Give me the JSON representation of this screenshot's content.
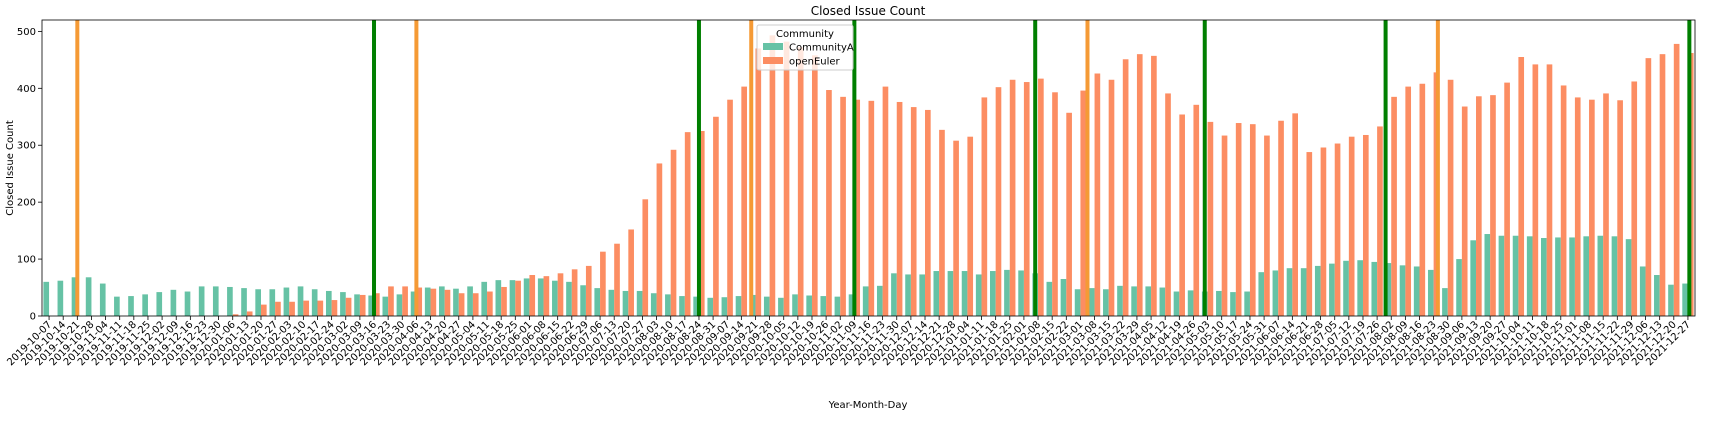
{
  "chart_data": {
    "type": "bar",
    "title": "Closed Issue Count",
    "xlabel": "Year-Month-Day",
    "ylabel": "Closed Issue Count",
    "legend_title": "Community",
    "legend_position": "upper center",
    "categories": [
      "2019-10-07",
      "2019-10-14",
      "2019-10-21",
      "2019-10-28",
      "2019-11-04",
      "2019-11-11",
      "2019-11-18",
      "2019-11-25",
      "2019-12-02",
      "2019-12-09",
      "2019-12-16",
      "2019-12-23",
      "2019-12-30",
      "2020-01-06",
      "2020-01-13",
      "2020-01-20",
      "2020-01-27",
      "2020-02-03",
      "2020-02-10",
      "2020-02-17",
      "2020-02-24",
      "2020-03-02",
      "2020-03-09",
      "2020-03-16",
      "2020-03-23",
      "2020-03-30",
      "2020-04-06",
      "2020-04-13",
      "2020-04-20",
      "2020-04-27",
      "2020-05-04",
      "2020-05-11",
      "2020-05-18",
      "2020-05-25",
      "2020-06-01",
      "2020-06-08",
      "2020-06-15",
      "2020-06-22",
      "2020-06-29",
      "2020-07-06",
      "2020-07-13",
      "2020-07-20",
      "2020-07-27",
      "2020-08-03",
      "2020-08-10",
      "2020-08-17",
      "2020-08-24",
      "2020-08-31",
      "2020-09-07",
      "2020-09-14",
      "2020-09-21",
      "2020-09-28",
      "2020-10-05",
      "2020-10-12",
      "2020-10-19",
      "2020-10-26",
      "2020-11-02",
      "2020-11-09",
      "2020-11-16",
      "2020-11-23",
      "2020-11-30",
      "2020-12-07",
      "2020-12-14",
      "2020-12-21",
      "2020-12-28",
      "2021-01-04",
      "2021-01-11",
      "2021-01-18",
      "2021-01-25",
      "2021-02-01",
      "2021-02-08",
      "2021-02-15",
      "2021-02-22",
      "2021-03-01",
      "2021-03-08",
      "2021-03-15",
      "2021-03-22",
      "2021-03-29",
      "2021-04-05",
      "2021-04-12",
      "2021-04-19",
      "2021-04-26",
      "2021-05-03",
      "2021-05-10",
      "2021-05-17",
      "2021-05-24",
      "2021-05-31",
      "2021-06-07",
      "2021-06-14",
      "2021-06-21",
      "2021-06-28",
      "2021-07-05",
      "2021-07-12",
      "2021-07-19",
      "2021-07-26",
      "2021-08-02",
      "2021-08-09",
      "2021-08-16",
      "2021-08-23",
      "2021-08-30",
      "2021-09-06",
      "2021-09-13",
      "2021-09-20",
      "2021-09-27",
      "2021-10-04",
      "2021-10-11",
      "2021-10-18",
      "2021-10-25",
      "2021-11-01",
      "2021-11-08",
      "2021-11-15",
      "2021-11-22",
      "2021-11-29",
      "2021-12-06",
      "2021-12-13",
      "2021-12-20",
      "2021-12-27"
    ],
    "series": [
      {
        "name": "CommunityA",
        "color": "#66c2a5",
        "values": [
          60,
          62,
          68,
          68,
          57,
          34,
          35,
          38,
          42,
          46,
          43,
          52,
          52,
          51,
          49,
          47,
          47,
          50,
          52,
          47,
          44,
          42,
          38,
          36,
          34,
          38,
          43,
          50,
          52,
          48,
          52,
          60,
          63,
          63,
          66,
          66,
          62,
          60,
          54,
          49,
          46,
          44,
          44,
          40,
          38,
          35,
          34,
          32,
          33,
          35,
          37,
          34,
          32,
          38,
          36,
          35,
          34,
          38,
          52,
          53,
          75,
          73,
          73,
          79,
          79,
          79,
          73,
          79,
          81,
          80,
          75,
          60,
          65,
          47,
          49,
          47,
          53,
          52,
          52,
          50,
          43,
          45,
          43,
          44,
          42,
          43,
          77,
          80,
          84,
          84,
          88,
          92,
          97,
          98,
          95,
          93,
          89,
          87,
          81,
          49,
          100,
          133,
          144,
          141,
          141,
          140,
          137,
          138,
          138,
          140,
          141,
          140,
          135,
          87,
          72,
          55,
          57
        ]
      },
      {
        "name": "openEuler",
        "color": "#fc8d62",
        "values": [
          0,
          0,
          0,
          0,
          0,
          0,
          0,
          0,
          0,
          0,
          0,
          0,
          0,
          3,
          8,
          20,
          25,
          25,
          27,
          27,
          28,
          32,
          37,
          40,
          52,
          52,
          50,
          48,
          46,
          40,
          40,
          43,
          51,
          62,
          72,
          70,
          75,
          82,
          88,
          113,
          127,
          152,
          205,
          268,
          292,
          323,
          325,
          350,
          380,
          403,
          470,
          493,
          482,
          472,
          458,
          397,
          385,
          380,
          378,
          403,
          376,
          367,
          362,
          327,
          308,
          315,
          384,
          402,
          415,
          411,
          417,
          393,
          357,
          396,
          426,
          415,
          451,
          460,
          457,
          391,
          354,
          371,
          341,
          317,
          339,
          337,
          317,
          343,
          356,
          288,
          296,
          303,
          315,
          318,
          333,
          385,
          403,
          408,
          428,
          415,
          368,
          386,
          388,
          410,
          455,
          442,
          442,
          405,
          384,
          380,
          391,
          379,
          412,
          453,
          460,
          478,
          462
        ]
      }
    ],
    "vlines": [
      {
        "x": 2,
        "color": "#f59a35"
      },
      {
        "x": 26,
        "color": "#f59a35"
      },
      {
        "x": 49.7,
        "color": "#f59a35"
      },
      {
        "x": 73.5,
        "color": "#f59a35"
      },
      {
        "x": 98.3,
        "color": "#f59a35"
      },
      {
        "x": 23,
        "color": "#007f00"
      },
      {
        "x": 46,
        "color": "#007f00"
      },
      {
        "x": 57,
        "color": "#007f00"
      },
      {
        "x": 69.8,
        "color": "#007f00"
      },
      {
        "x": 81.8,
        "color": "#007f00"
      },
      {
        "x": 94.6,
        "color": "#007f00"
      },
      {
        "x": 116.1,
        "color": "#007f00"
      }
    ],
    "ylim": [
      0,
      520
    ],
    "yticks": [
      0,
      100,
      200,
      300,
      400,
      500
    ]
  }
}
